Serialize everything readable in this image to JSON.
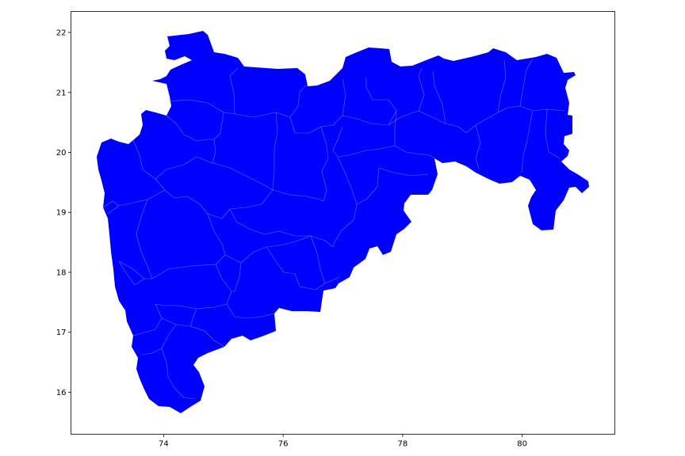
{
  "map": {
    "fill_color": "#0000ff",
    "border_color": "#6a6aff",
    "frame_color": "#000000",
    "x_ticks": [
      {
        "value": 74,
        "label": "74"
      },
      {
        "value": 76,
        "label": "76"
      },
      {
        "value": 78,
        "label": "78"
      },
      {
        "value": 80,
        "label": "80"
      }
    ],
    "y_ticks": [
      {
        "value": 16,
        "label": "16"
      },
      {
        "value": 17,
        "label": "17"
      },
      {
        "value": 18,
        "label": "18"
      },
      {
        "value": 19,
        "label": "19"
      },
      {
        "value": 20,
        "label": "20"
      },
      {
        "value": 21,
        "label": "21"
      },
      {
        "value": 22,
        "label": "22"
      }
    ],
    "xlim": [
      72.45,
      81.55
    ],
    "ylim": [
      15.3,
      22.35
    ]
  }
}
